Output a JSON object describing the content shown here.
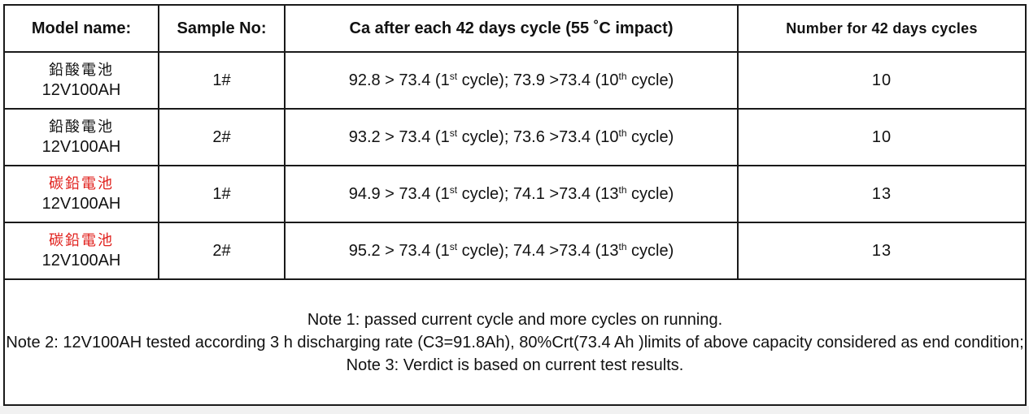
{
  "headers": {
    "model": "Model name:",
    "sample": "Sample No:",
    "ca": "Ca after each 42 days cycle (55 ˚C impact)",
    "count": "Number for 42 days cycles"
  },
  "rows": [
    {
      "model_cn": "鉛酸電池",
      "model_cn_color": "#111111",
      "model_en": "12V100AH",
      "sample": "1#",
      "ca_first": "92.8 > 73.4 (1",
      "ca_mid": " cycle); 73.9 >73.4 (10",
      "ca_last": " cycle)",
      "sup1": "st",
      "sup2": "th",
      "count": "10"
    },
    {
      "model_cn": "鉛酸電池",
      "model_cn_color": "#111111",
      "model_en": "12V100AH",
      "sample": "2#",
      "ca_first": "93.2 > 73.4 (1",
      "ca_mid": " cycle); 73.6 >73.4 (10",
      "ca_last": " cycle)",
      "sup1": "st",
      "sup2": "th",
      "count": "10"
    },
    {
      "model_cn": "碳鉛電池",
      "model_cn_color": "#e0201c",
      "model_en": "12V100AH",
      "sample": "1#",
      "ca_first": "94.9 > 73.4 (1",
      "ca_mid": " cycle); 74.1 >73.4 (13",
      "ca_last": " cycle)",
      "sup1": "st",
      "sup2": "th",
      "count": "13"
    },
    {
      "model_cn": "碳鉛電池",
      "model_cn_color": "#e0201c",
      "model_en": "12V100AH",
      "sample": "2#",
      "ca_first": "95.2 > 73.4 (1",
      "ca_mid": " cycle); 74.4 >73.4 (13",
      "ca_last": " cycle)",
      "sup1": "st",
      "sup2": "th",
      "count": "13"
    }
  ],
  "notes": [
    "Note 1: passed current cycle and more cycles on running.",
    "Note 2: 12V100AH tested according 3 h discharging rate (C3=91.8Ah), 80%Crt(73.4 Ah )limits of above capacity considered as end condition;",
    "Note 3: Verdict is based on current test results."
  ]
}
